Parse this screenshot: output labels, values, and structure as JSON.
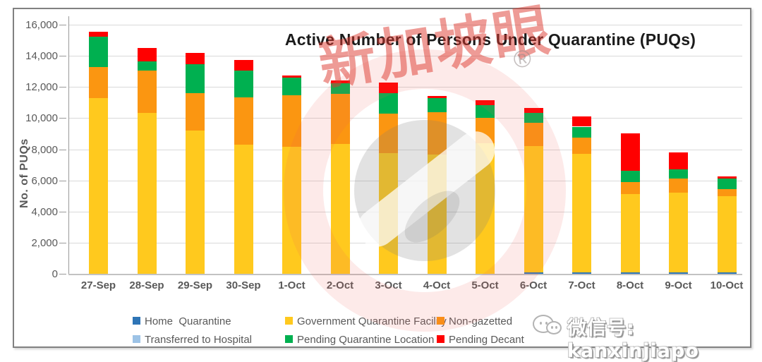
{
  "title": "Active Number of Persons Under Quarantine (PUQs)",
  "y_axis": {
    "label": "No. of PUQs",
    "ticks": [
      "16,000",
      "14,000",
      "12,000",
      "10,000",
      "8,000",
      "6,000",
      "4,000",
      "2,000",
      "0"
    ]
  },
  "chart_data": {
    "type": "bar",
    "stacked": true,
    "title": "Active Number of Persons Under Quarantine (PUQs)",
    "xlabel": "",
    "ylabel": "No. of PUQs",
    "ylim": [
      0,
      16000
    ],
    "grid": true,
    "legend_position": "bottom",
    "categories": [
      "27-Sep",
      "28-Sep",
      "29-Sep",
      "30-Sep",
      "1-Oct",
      "2-Oct",
      "3-Oct",
      "4-Oct",
      "5-Oct",
      "6-Oct",
      "7-Oct",
      "8-Oct",
      "9-Oct",
      "10-Oct"
    ],
    "series": [
      {
        "name": "Home  Quarantine",
        "color": "#2E75B6",
        "values": [
          0,
          0,
          0,
          0,
          0,
          0,
          0,
          0,
          0,
          100,
          100,
          100,
          100,
          100
        ]
      },
      {
        "name": "Government Quarantine Facility",
        "color": "#FFC91E",
        "values": [
          11300,
          10350,
          9200,
          8300,
          8150,
          8350,
          7750,
          7650,
          8400,
          8100,
          7600,
          5000,
          5100,
          4900
        ]
      },
      {
        "name": "Non-gazetted",
        "color": "#FB9611",
        "values": [
          2000,
          2700,
          2400,
          3050,
          3300,
          3200,
          2550,
          2750,
          1600,
          1500,
          1050,
          800,
          900,
          450
        ]
      },
      {
        "name": "Transferred to Hospital",
        "color": "#9DC3E6",
        "values": [
          0,
          0,
          0,
          0,
          0,
          0,
          0,
          0,
          0,
          0,
          0,
          0,
          0,
          0
        ]
      },
      {
        "name": "Pending Quarantine Location",
        "color": "#00B050",
        "values": [
          1950,
          600,
          1850,
          1700,
          1150,
          700,
          1300,
          900,
          850,
          650,
          700,
          700,
          600,
          650
        ]
      },
      {
        "name": "Pending Decant",
        "color": "#FF0000",
        "values": [
          300,
          850,
          750,
          700,
          150,
          150,
          700,
          100,
          300,
          300,
          650,
          2400,
          1100,
          150
        ]
      }
    ],
    "totals": [
      15550,
      14500,
      14200,
      13750,
      12750,
      12400,
      12300,
      11400,
      11150,
      10650,
      10100,
      9000,
      7800,
      6250
    ]
  },
  "watermarks": {
    "brand_text": "新加坡眼",
    "registered_mark": "®",
    "wechat_label": "微信号: kanxinjiapo"
  }
}
